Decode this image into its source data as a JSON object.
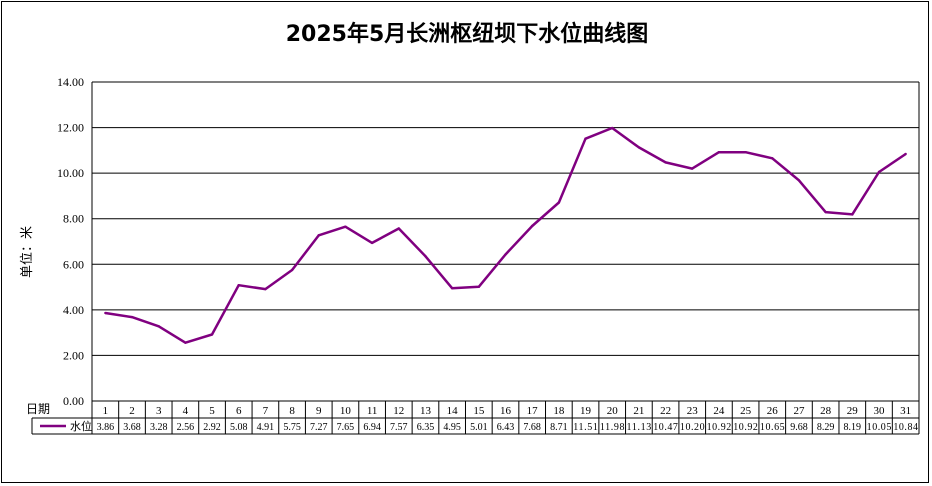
{
  "chart_data": {
    "type": "line",
    "title": "2025年5月长洲枢纽坝下水位曲线图",
    "ylabel": "单位：米",
    "xlabel": "日期",
    "ylim": [
      0,
      14
    ],
    "yticks": [
      "0.00",
      "2.00",
      "4.00",
      "6.00",
      "8.00",
      "10.00",
      "12.00",
      "14.00"
    ],
    "grid": true,
    "line_color": "#800080",
    "categories": [
      "1",
      "2",
      "3",
      "4",
      "5",
      "6",
      "7",
      "8",
      "9",
      "10",
      "11",
      "12",
      "13",
      "14",
      "15",
      "16",
      "17",
      "18",
      "19",
      "20",
      "21",
      "22",
      "23",
      "24",
      "25",
      "26",
      "27",
      "28",
      "29",
      "30",
      "31"
    ],
    "series": [
      {
        "name": "水位",
        "values": [
          3.86,
          3.68,
          3.28,
          2.56,
          2.92,
          5.08,
          4.91,
          5.75,
          7.27,
          7.65,
          6.94,
          7.57,
          6.35,
          4.95,
          5.01,
          6.43,
          7.68,
          8.71,
          11.51,
          11.98,
          11.13,
          10.47,
          10.2,
          10.92,
          10.92,
          10.65,
          9.68,
          8.29,
          8.19,
          10.05,
          10.84
        ],
        "labels": [
          "3.86",
          "3.68",
          "3.28",
          "2.56",
          "2.92",
          "5.08",
          "4.91",
          "5.75",
          "7.27",
          "7.65",
          "6.94",
          "7.57",
          "6.35",
          "4.95",
          "5.01",
          "6.43",
          "7.68",
          "8.71",
          "11.51",
          "11.98",
          "11.13",
          "10.47",
          "10.20",
          "10.92",
          "10.92",
          "10.65",
          "9.68",
          "8.29",
          "8.19",
          "10.05",
          "10.84"
        ]
      }
    ]
  }
}
